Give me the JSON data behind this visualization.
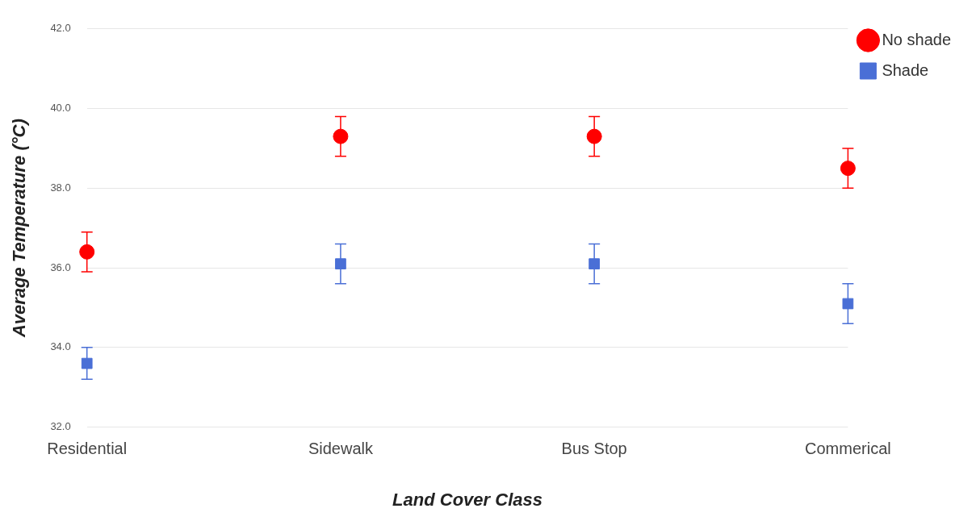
{
  "chart_data": {
    "type": "scatter",
    "xlabel": "Land Cover Class",
    "ylabel": "Average Temperature (°C)",
    "categories": [
      "Residential",
      "Sidewalk",
      "Bus Stop",
      "Commerical"
    ],
    "series": [
      {
        "name": "No shade",
        "color": "#ff0000",
        "marker": "circle",
        "values": [
          36.4,
          39.3,
          39.3,
          38.5
        ],
        "errors": [
          0.5,
          0.5,
          0.5,
          0.5
        ]
      },
      {
        "name": "Shade",
        "color": "#4a6fd6",
        "marker": "square",
        "values": [
          33.6,
          36.1,
          36.1,
          35.1
        ],
        "errors": [
          0.4,
          0.5,
          0.5,
          0.5
        ]
      }
    ],
    "ylim": [
      32,
      42
    ],
    "yticks": [
      {
        "value": 32,
        "label": "32.0"
      },
      {
        "value": 34,
        "label": "34.0"
      },
      {
        "value": 36,
        "label": "36.0"
      },
      {
        "value": 38,
        "label": "38.0"
      },
      {
        "value": 40,
        "label": "40.0"
      },
      {
        "value": 42,
        "label": "42.0"
      }
    ],
    "grid": "y",
    "legend": "top right"
  }
}
